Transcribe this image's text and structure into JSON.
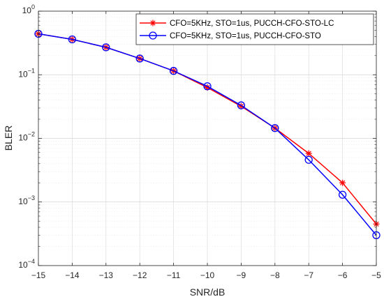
{
  "chart_data": {
    "type": "line",
    "title": "",
    "xlabel": "SNR/dB",
    "ylabel": "BLER",
    "xlim": [
      -15,
      -5
    ],
    "ylim": [
      0.0001,
      1
    ],
    "yscale": "log",
    "grid": true,
    "legend_position": "top-right",
    "x_tick_labels": [
      "−15",
      "−14",
      "−13",
      "−12",
      "−11",
      "−10",
      "−9",
      "−8",
      "−7",
      "−6",
      "−5"
    ],
    "y_tick_labels": [
      {
        "base": "10",
        "exp": "−4"
      },
      {
        "base": "10",
        "exp": "−3"
      },
      {
        "base": "10",
        "exp": "−2"
      },
      {
        "base": "10",
        "exp": "−1"
      },
      {
        "base": "10",
        "exp": "0"
      }
    ],
    "x": [
      -15,
      -14,
      -13,
      -12,
      -11,
      -10,
      -9,
      -8,
      -7,
      -6,
      -5
    ],
    "series": [
      {
        "name": "CFO=5KHz, STO=1us, PUCCH-CFO-STO-LC",
        "color": "#ff0000",
        "marker": "asterisk",
        "values": [
          0.44,
          0.36,
          0.27,
          0.18,
          0.115,
          0.063,
          0.032,
          0.0145,
          0.0058,
          0.002,
          0.00045
        ]
      },
      {
        "name": "CFO=5KHz, STO=1us, PUCCH-CFO-STO",
        "color": "#0000ff",
        "marker": "circle",
        "values": [
          0.44,
          0.36,
          0.27,
          0.18,
          0.115,
          0.066,
          0.033,
          0.0145,
          0.0046,
          0.0013,
          0.0003
        ]
      }
    ]
  }
}
